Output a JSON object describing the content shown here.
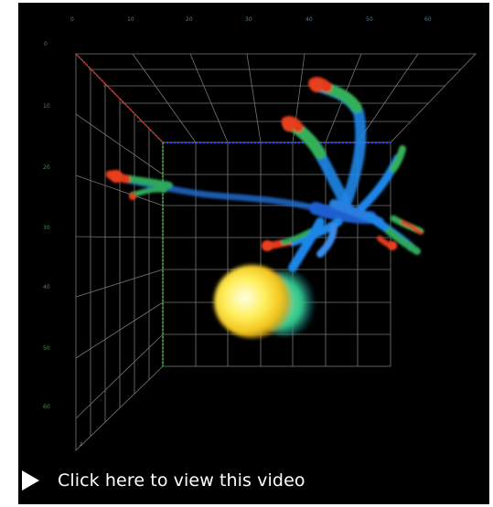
{
  "axes": {
    "top_ticks": [
      "0",
      "10",
      "20",
      "30",
      "40",
      "50",
      "60"
    ],
    "left_ticks": [
      "0",
      "10",
      "20",
      "30",
      "40",
      "50",
      "60"
    ]
  },
  "video": {
    "link_label": "Click here to view this video",
    "play_icon": "play-icon"
  }
}
